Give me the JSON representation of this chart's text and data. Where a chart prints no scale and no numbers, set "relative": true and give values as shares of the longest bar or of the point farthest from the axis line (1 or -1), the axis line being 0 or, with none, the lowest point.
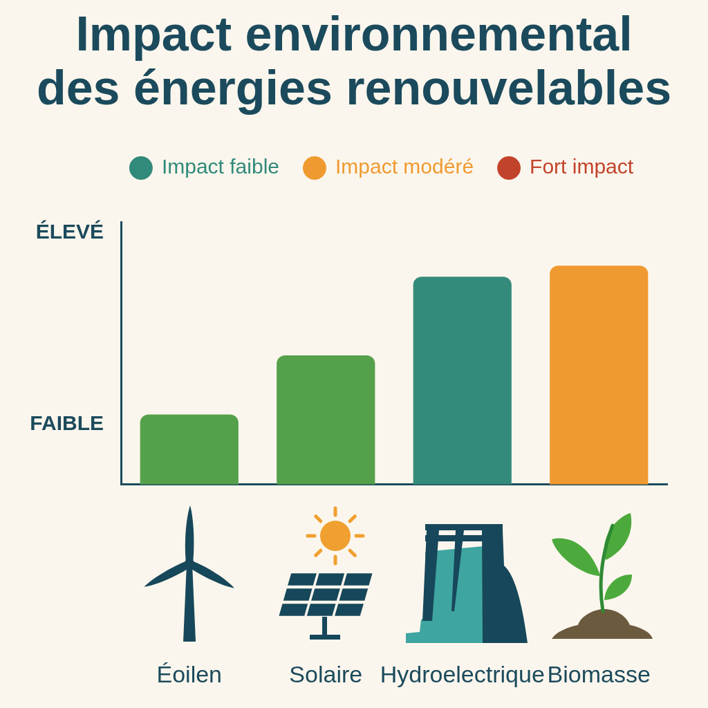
{
  "chart_data": {
    "type": "bar",
    "title": "Impact environnemental des énergies renouvelables",
    "categories": [
      "Éoilen",
      "Solaire",
      "Hydroelectrique",
      "Biomasse"
    ],
    "series": [
      {
        "name": "Impact faible",
        "color": "#318a7a",
        "colors": [
          "#55a04a",
          "#55a04a",
          "#348b7b",
          null
        ],
        "values": [
          0.32,
          0.59,
          0.95,
          null
        ]
      },
      {
        "name": "Impact modéré",
        "color": "#ef9a30",
        "values": [
          null,
          null,
          null,
          1
        ]
      },
      {
        "name": "Fort impact",
        "color": "#c2432b",
        "values": [
          null,
          null,
          null,
          null
        ]
      }
    ],
    "relative": true,
    "legend": "top",
    "annotations": [
      "ÉLEVÉ",
      "FAIBLE"
    ]
  }
}
